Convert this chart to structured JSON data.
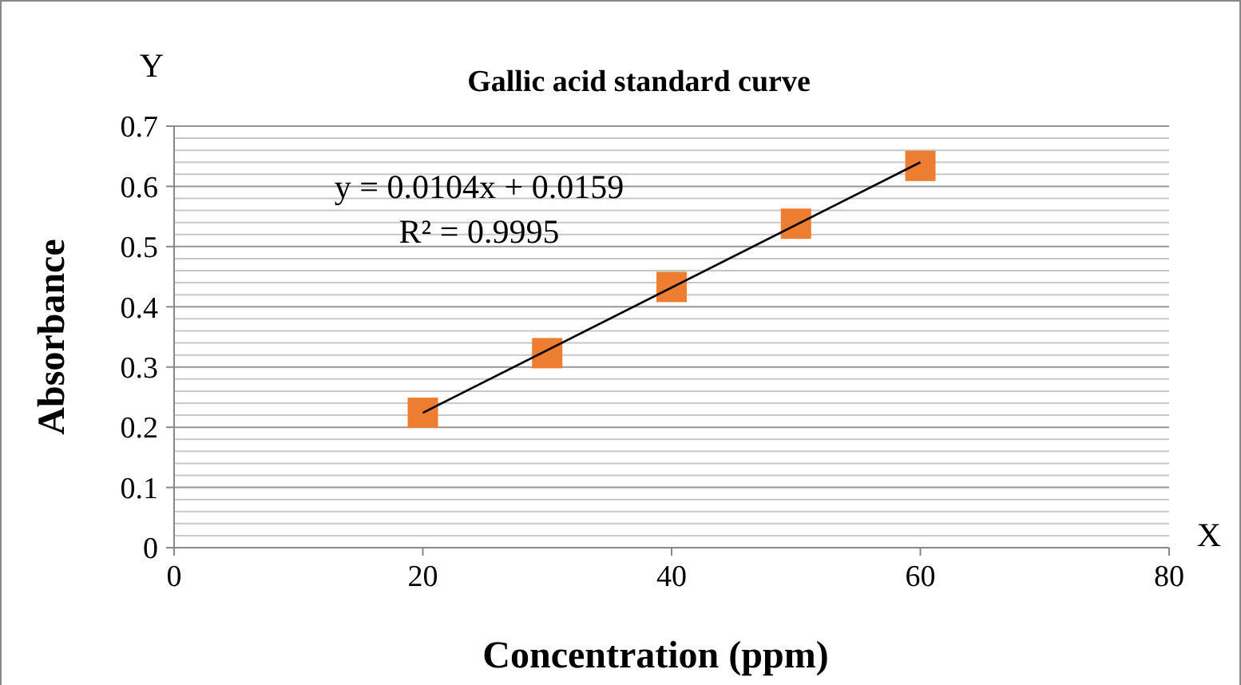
{
  "chart_data": {
    "type": "scatter",
    "title": "Gallic acid standard curve",
    "xlabel": "Concentration (ppm)",
    "ylabel": "Absorbance",
    "x": [
      20,
      30,
      40,
      50,
      60
    ],
    "series": [
      {
        "color": "#ed7d31",
        "marker": "square",
        "values": [
          0.224,
          0.323,
          0.433,
          0.538,
          0.634
        ]
      },
      {
        "type": "line",
        "color": "#000000",
        "marker": "none",
        "line_style": "solid",
        "x": [
          20,
          60
        ],
        "values": [
          0.224,
          0.64
        ]
      }
    ],
    "xlim": [
      0,
      80
    ],
    "xticks": [
      0,
      20,
      40,
      60,
      80
    ],
    "ylim": [
      0,
      0.7
    ],
    "yticks": [
      0,
      {
        "value": 0.02,
        "label": null
      },
      {
        "value": 0.04,
        "label": null
      },
      {
        "value": 0.06,
        "label": null
      },
      {
        "value": 0.08,
        "label": null
      },
      0.1,
      {
        "value": 0.12,
        "label": null
      },
      {
        "value": 0.14,
        "label": null
      },
      {
        "value": 0.16,
        "label": null
      },
      {
        "value": 0.18,
        "label": null
      },
      0.2,
      {
        "value": 0.22,
        "label": null
      },
      {
        "value": 0.24,
        "label": null
      },
      {
        "value": 0.26,
        "label": null
      },
      {
        "value": 0.28,
        "label": null
      },
      0.3,
      {
        "value": 0.32,
        "label": null
      },
      {
        "value": 0.34,
        "label": null
      },
      {
        "value": 0.36,
        "label": null
      },
      {
        "value": 0.38,
        "label": null
      },
      0.4,
      {
        "value": 0.42,
        "label": null
      },
      {
        "value": 0.44,
        "label": null
      },
      {
        "value": 0.46,
        "label": null
      },
      {
        "value": 0.48,
        "label": null
      },
      0.5,
      {
        "value": 0.52,
        "label": null
      },
      {
        "value": 0.54,
        "label": null
      },
      {
        "value": 0.56,
        "label": null
      },
      {
        "value": 0.58,
        "label": null
      },
      0.6,
      {
        "value": 0.62,
        "label": null
      },
      {
        "value": 0.64,
        "label": null
      },
      {
        "value": 0.66,
        "label": null
      },
      {
        "value": 0.68,
        "label": null
      },
      0.7
    ],
    "grid": "y",
    "annotations": [
      "y = 0.0104x + 0.0159",
      "R² = 0.9995",
      "Y",
      "X"
    ]
  }
}
